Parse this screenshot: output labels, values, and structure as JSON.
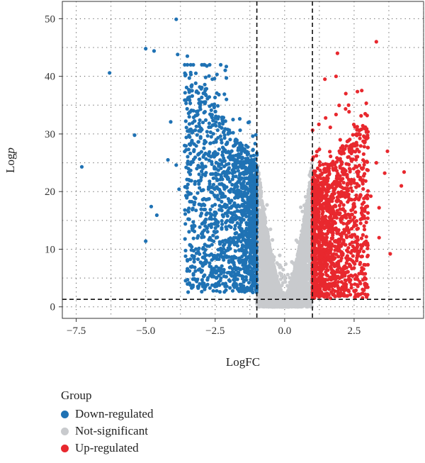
{
  "chart_data": {
    "type": "scatter",
    "title": "",
    "xlabel": "LogFC",
    "ylabel_prefix": "Log",
    "ylabel_italic": "p",
    "xlim": [
      -8,
      5
    ],
    "ylim": [
      -2,
      53
    ],
    "x_ticks": [
      -7.5,
      -5.0,
      -2.5,
      0.0,
      2.5
    ],
    "x_tick_labels": [
      "−7.5",
      "−5.0",
      "−2.5",
      "0.0",
      "2.5"
    ],
    "y_ticks": [
      0,
      10,
      20,
      30,
      40,
      50
    ],
    "y_tick_labels": [
      "0",
      "10",
      "20",
      "30",
      "40",
      "50"
    ],
    "grid": "dotted",
    "thresholds": {
      "logfc": [
        -1,
        1
      ],
      "logp": 1.3
    },
    "legend": {
      "title": "Group",
      "placement": "bottom-left",
      "entries": [
        {
          "name": "Down-regulated",
          "color": "#1f72b4"
        },
        {
          "name": "Not-significant",
          "color": "#c8cacd"
        },
        {
          "name": "Up-regulated",
          "color": "#e8282e"
        }
      ]
    },
    "series": [
      {
        "name": "Down-regulated",
        "color": "#1f72b4",
        "points": [
          [
            -7.3,
            24.3
          ],
          [
            -6.3,
            40.6
          ],
          [
            -5.4,
            29.8
          ],
          [
            -5.0,
            44.8
          ],
          [
            -5.0,
            11.4
          ],
          [
            -4.8,
            17.4
          ],
          [
            -4.7,
            44.4
          ],
          [
            -4.6,
            15.9
          ],
          [
            -3.9,
            49.9
          ],
          [
            -3.85,
            43.8
          ],
          [
            -3.5,
            43.5
          ],
          [
            -3.4,
            10.7
          ],
          [
            -3.35,
            6.9
          ],
          [
            -4.1,
            32.1
          ],
          [
            -3.9,
            24.6
          ],
          [
            -3.2,
            38.8
          ],
          [
            -3.0,
            22.5
          ],
          [
            -2.8,
            41.8
          ],
          [
            -2.6,
            39.5
          ],
          [
            -2.3,
            42.0
          ],
          [
            -2.1,
            41.7
          ],
          [
            -3.6,
            28.0
          ],
          [
            -3.3,
            30.5
          ],
          [
            -2.9,
            33.7
          ],
          [
            -4.2,
            25.5
          ],
          [
            -3.8,
            20.4
          ],
          [
            -2.7,
            15.3
          ],
          [
            -2.4,
            9.0
          ],
          [
            -2.0,
            8.0
          ],
          [
            -3.1,
            6.4
          ]
        ]
      },
      {
        "name": "Up-regulated",
        "color": "#e8282e",
        "points": [
          [
            3.3,
            46.0
          ],
          [
            1.85,
            40.0
          ],
          [
            1.45,
            39.5
          ],
          [
            4.3,
            23.4
          ],
          [
            4.2,
            21.0
          ],
          [
            3.7,
            27.0
          ],
          [
            3.6,
            23.2
          ],
          [
            3.3,
            25.0
          ],
          [
            3.1,
            19.2
          ],
          [
            2.9,
            33.5
          ],
          [
            3.0,
            16.3
          ],
          [
            2.6,
            23.4
          ],
          [
            2.5,
            12.5
          ],
          [
            3.4,
            17.2
          ],
          [
            3.4,
            12.0
          ],
          [
            2.6,
            8.5
          ],
          [
            2.3,
            35.0
          ],
          [
            2.2,
            37.0
          ],
          [
            1.65,
            1.5
          ],
          [
            2.8,
            10.6
          ],
          [
            1.9,
            44.0
          ],
          [
            2.0,
            29.0
          ],
          [
            3.8,
            9.2
          ],
          [
            2.7,
            19.0
          ]
        ]
      },
      {
        "name": "Not-significant",
        "color": "#c8cacd",
        "points": []
      }
    ]
  }
}
